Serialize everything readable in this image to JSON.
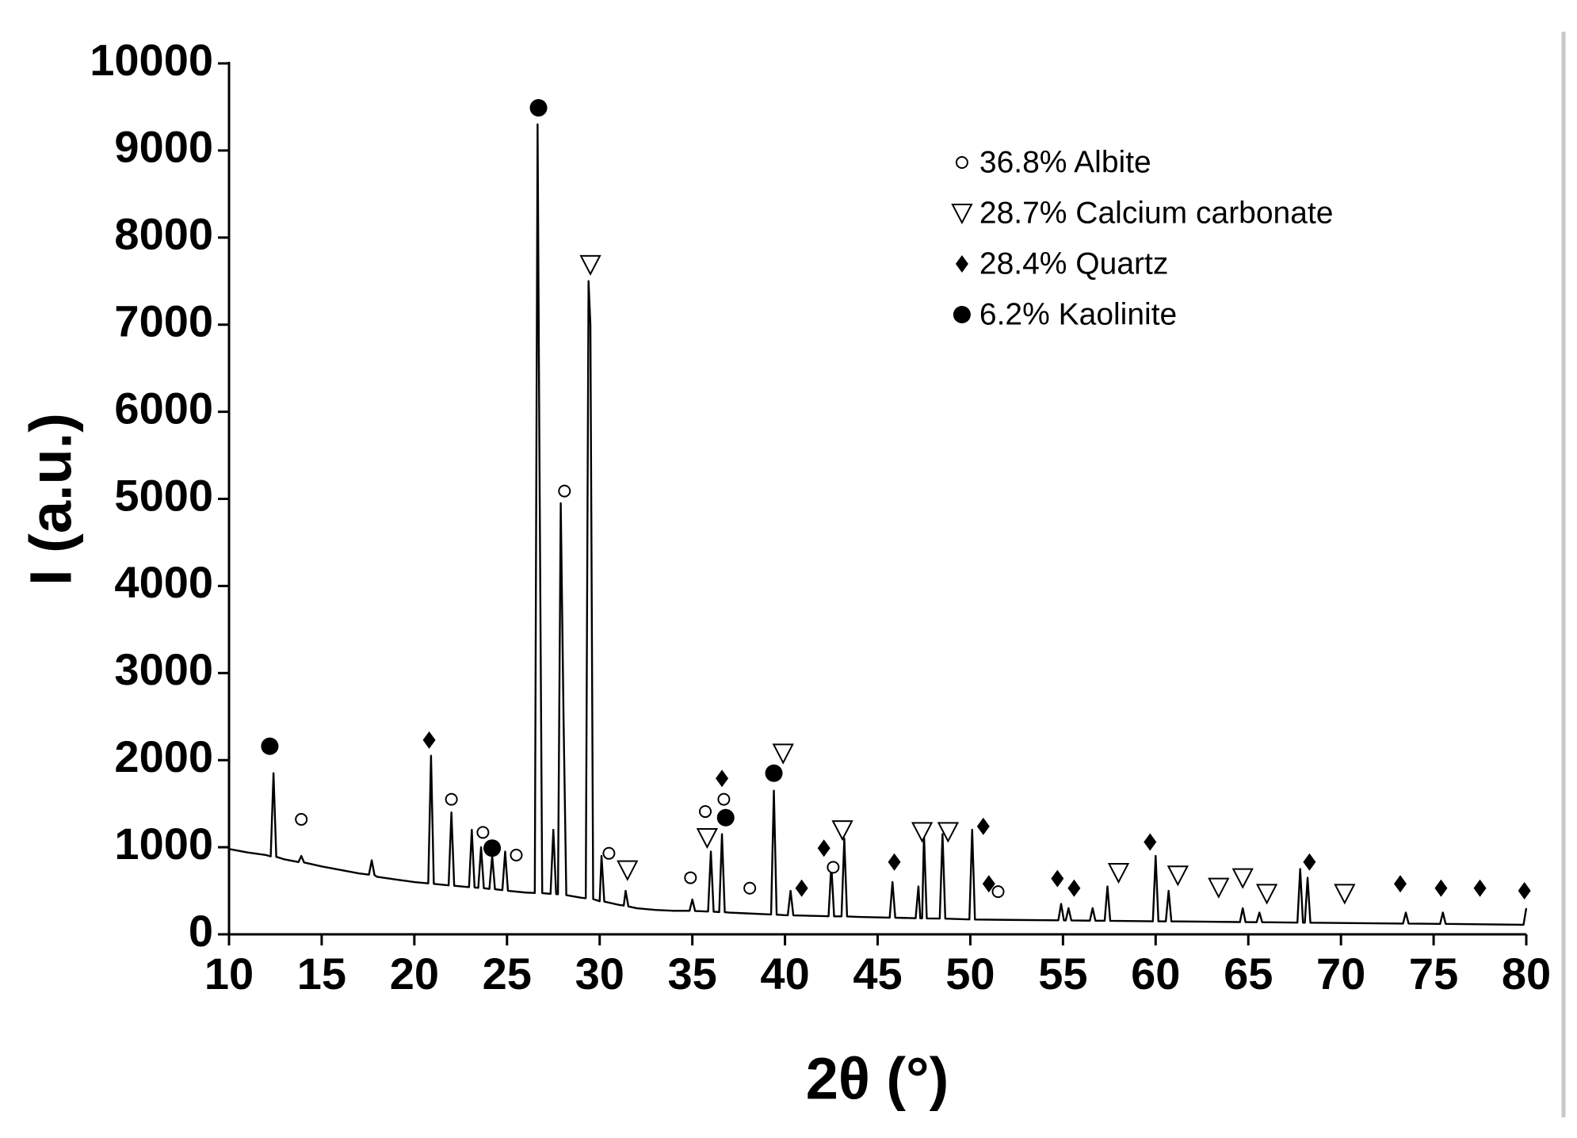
{
  "chart_data": {
    "type": "line",
    "xlabel": "2θ (°)",
    "ylabel": "I (a.u.)",
    "xlim": [
      10,
      80
    ],
    "xticks": [
      10,
      15,
      20,
      25,
      30,
      35,
      40,
      45,
      50,
      55,
      60,
      65,
      70,
      75,
      80
    ],
    "ylim": [
      0,
      10000
    ],
    "yticks": [
      0,
      1000,
      2000,
      3000,
      4000,
      5000,
      6000,
      7000,
      8000,
      9000,
      10000
    ],
    "legend": "upper right",
    "series": [
      {
        "color": "#000000",
        "x": [
          10,
          11,
          12,
          12.25,
          12.4,
          12.55,
          13,
          13.75,
          13.9,
          14.05,
          15,
          16,
          17,
          17.55,
          17.7,
          17.85,
          18,
          19,
          20,
          20.75,
          20.9,
          21.05,
          21.85,
          22.0,
          22.15,
          22.95,
          23.1,
          23.25,
          23.45,
          23.6,
          23.75,
          24.05,
          24.2,
          24.35,
          24.75,
          24.9,
          25.05,
          26,
          26.5,
          26.65,
          26.75,
          26.9,
          27.35,
          27.5,
          27.65,
          27.75,
          27.9,
          28.05,
          28.2,
          29,
          29.25,
          29.4,
          29.5,
          29.65,
          30,
          30.1,
          30.25,
          31,
          31.3,
          31.4,
          31.55,
          32,
          33,
          34,
          34.85,
          35.0,
          35.15,
          35.85,
          36.0,
          36.15,
          36.45,
          36.6,
          36.75,
          37,
          38,
          39,
          39.25,
          39.4,
          39.55,
          40,
          40.15,
          40.3,
          40.45,
          42,
          42.35,
          42.5,
          42.65,
          43.05,
          43.2,
          43.35,
          44,
          45.65,
          45.8,
          45.95,
          47.05,
          47.2,
          47.3,
          47.4,
          47.5,
          47.65,
          48.35,
          48.5,
          48.65,
          49.95,
          50.1,
          50.25,
          52,
          54.75,
          54.9,
          55.05,
          55.15,
          55.3,
          55.45,
          56.45,
          56.6,
          56.75,
          57.25,
          57.4,
          57.55,
          59.85,
          60.0,
          60.15,
          60.55,
          60.7,
          60.85,
          64.55,
          64.7,
          64.85,
          65.45,
          65.6,
          65.75,
          67.65,
          67.8,
          67.95,
          68.05,
          68.2,
          68.35,
          70,
          73.35,
          73.5,
          73.65,
          75.35,
          75.5,
          75.65,
          77.5,
          79.85,
          80
        ],
        "values": [
          980,
          940,
          910,
          895,
          1850,
          890,
          860,
          830,
          900,
          825,
          780,
          740,
          700,
          685,
          850,
          680,
          660,
          630,
          600,
          585,
          2050,
          580,
          562,
          1400,
          558,
          542,
          1200,
          538,
          534,
          1000,
          530,
          522,
          900,
          518,
          508,
          950,
          500,
          480,
          475,
          9300,
          5500,
          474,
          465,
          1200,
          462,
          460,
          4950,
          2500,
          450,
          420,
          415,
          7500,
          7000,
          405,
          380,
          900,
          376,
          340,
          330,
          500,
          320,
          300,
          280,
          270,
          270,
          400,
          268,
          262,
          950,
          260,
          256,
          1150,
          254,
          250,
          240,
          230,
          228,
          1650,
          226,
          220,
          219,
          500,
          218,
          210,
          208,
          800,
          207,
          206,
          1100,
          205,
          200,
          192,
          600,
          191,
          185,
          550,
          184,
          184,
          1150,
          183,
          181,
          1150,
          180,
          171,
          1200,
          170,
          166,
          161,
          350,
          160,
          160,
          300,
          160,
          157,
          300,
          157,
          156,
          550,
          155,
          150,
          900,
          150,
          149,
          500,
          149,
          141,
          300,
          141,
          139,
          250,
          139,
          135,
          750,
          134,
          134,
          650,
          134,
          130,
          123,
          250,
          123,
          120,
          250,
          120,
          115,
          110,
          300
        ]
      },
      {
        "name": "36.8% Albite",
        "marker": "circle-open",
        "color": "#000000",
        "x": [
          13.9,
          22.0,
          23.7,
          25.5,
          28.1,
          30.5,
          34.9,
          35.7,
          36.7,
          38.1,
          42.6,
          51.5
        ],
        "values": [
          1320,
          1550,
          1170,
          910,
          5090,
          930,
          650,
          1410,
          1550,
          530,
          770,
          490
        ]
      },
      {
        "name": "28.7% Calcium carbonate",
        "marker": "triangle-open",
        "color": "#000000",
        "x": [
          29.5,
          31.5,
          35.8,
          39.9,
          43.1,
          47.4,
          48.8,
          58.0,
          61.2,
          63.4,
          64.7,
          66.0,
          70.2
        ],
        "values": [
          7690,
          740,
          1110,
          2080,
          1200,
          1180,
          1180,
          710,
          680,
          540,
          650,
          470,
          470
        ]
      },
      {
        "name": "28.4% Quartz",
        "marker": "diamond",
        "color": "#000000",
        "x": [
          20.8,
          36.6,
          40.9,
          42.1,
          45.9,
          50.7,
          51.0,
          54.7,
          55.6,
          59.7,
          68.3,
          73.2,
          75.4,
          77.5,
          79.9
        ],
        "values": [
          2230,
          1790,
          530,
          990,
          830,
          1240,
          580,
          640,
          530,
          1060,
          830,
          580,
          530,
          530,
          500
        ]
      },
      {
        "name": "6.2% Kaolinite",
        "marker": "circle",
        "color": "#000000",
        "x": [
          12.2,
          24.2,
          26.7,
          36.8,
          39.4
        ],
        "values": [
          2160,
          990,
          9490,
          1340,
          1850
        ]
      }
    ]
  }
}
